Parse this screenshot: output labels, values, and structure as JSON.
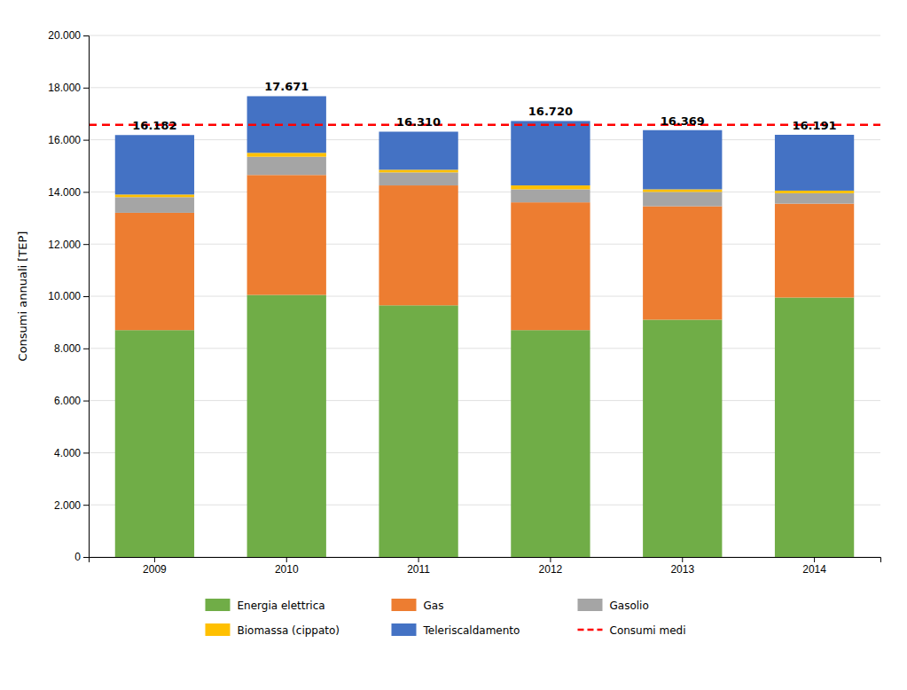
{
  "chart_data": {
    "type": "bar",
    "stacked": true,
    "ylabel": "Consumi annuali [TEP]",
    "categories": [
      "2009",
      "2010",
      "2011",
      "2012",
      "2013",
      "2014"
    ],
    "series": [
      {
        "name": "Energia elettrica",
        "color": "#70AD47",
        "values": [
          8700,
          10050,
          9650,
          8700,
          9100,
          9950
        ]
      },
      {
        "name": "Gas",
        "color": "#ED7D31",
        "values": [
          4500,
          4600,
          4600,
          4900,
          4350,
          3600
        ]
      },
      {
        "name": "Gasolio",
        "color": "#A5A5A5",
        "values": [
          600,
          700,
          500,
          500,
          550,
          400
        ]
      },
      {
        "name": "Biomassa (cippato)",
        "color": "#FFC000",
        "values": [
          100,
          150,
          100,
          150,
          100,
          100
        ]
      },
      {
        "name": "Teleriscaldamento",
        "color": "#4472C4",
        "values": [
          2282,
          2171,
          1460,
          2470,
          2269,
          2141
        ]
      }
    ],
    "totals": [
      16182,
      17671,
      16310,
      16720,
      16369,
      16191
    ],
    "total_labels": [
      "16.182",
      "17.671",
      "16.310",
      "16.720",
      "16.369",
      "16.191"
    ],
    "reference_lines": [
      {
        "name": "Consumi medi",
        "value": 16574,
        "color": "#FF0000",
        "line_style": "dashed"
      }
    ],
    "ylim": [
      0,
      20000
    ],
    "yticks": [
      0,
      {
        "value": 2000,
        "label": "2.000"
      },
      {
        "value": 4000,
        "label": "4.000"
      },
      {
        "value": 6000,
        "label": "6.000"
      },
      {
        "value": 8000,
        "label": "8.000"
      },
      {
        "value": 10000,
        "label": "10.000"
      },
      {
        "value": 12000,
        "label": "12.000"
      },
      {
        "value": 14000,
        "label": "14.000"
      },
      {
        "value": 16000,
        "label": "16.000"
      },
      {
        "value": 18000,
        "label": "18.000"
      },
      {
        "value": 20000,
        "label": "20.000"
      }
    ],
    "grid": true,
    "legend": "bottom"
  }
}
